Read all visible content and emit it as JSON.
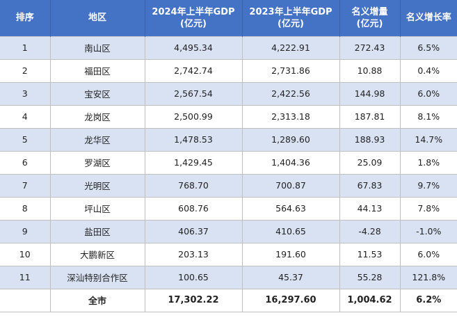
{
  "table": {
    "headers": [
      "排序",
      "地区",
      "2024年上半年GDP\n(亿元)",
      "2023年上半年GDP\n(亿元)",
      "名义增量\n(亿元)",
      "名义增长率"
    ],
    "rows": [
      [
        "1",
        "南山区",
        "4,495.34",
        "4,222.91",
        "272.43",
        "6.5%"
      ],
      [
        "2",
        "福田区",
        "2,742.74",
        "2,731.86",
        "10.88",
        "0.4%"
      ],
      [
        "3",
        "宝安区",
        "2,567.54",
        "2,422.56",
        "144.98",
        "6.0%"
      ],
      [
        "4",
        "龙岗区",
        "2,500.99",
        "2,313.18",
        "187.81",
        "8.1%"
      ],
      [
        "5",
        "龙华区",
        "1,478.53",
        "1,289.60",
        "188.93",
        "14.7%"
      ],
      [
        "6",
        "罗湖区",
        "1,429.45",
        "1,404.36",
        "25.09",
        "1.8%"
      ],
      [
        "7",
        "光明区",
        "768.70",
        "700.87",
        "67.83",
        "9.7%"
      ],
      [
        "8",
        "坪山区",
        "608.76",
        "564.63",
        "44.13",
        "7.8%"
      ],
      [
        "9",
        "盐田区",
        "406.37",
        "410.65",
        "-4.28",
        "-1.0%"
      ],
      [
        "10",
        "大鹏新区",
        "203.13",
        "191.60",
        "11.53",
        "6.0%"
      ],
      [
        "11",
        "深汕特别合作区",
        "100.65",
        "45.37",
        "55.28",
        "121.8%"
      ],
      [
        "",
        "全市",
        "17,302.22",
        "16,297.60",
        "1,004.62",
        "6.2%"
      ]
    ]
  },
  "colors": {
    "header_bg": "#4472c4",
    "band_bg": "#d9e2f3",
    "border": "#bfbfbf"
  }
}
